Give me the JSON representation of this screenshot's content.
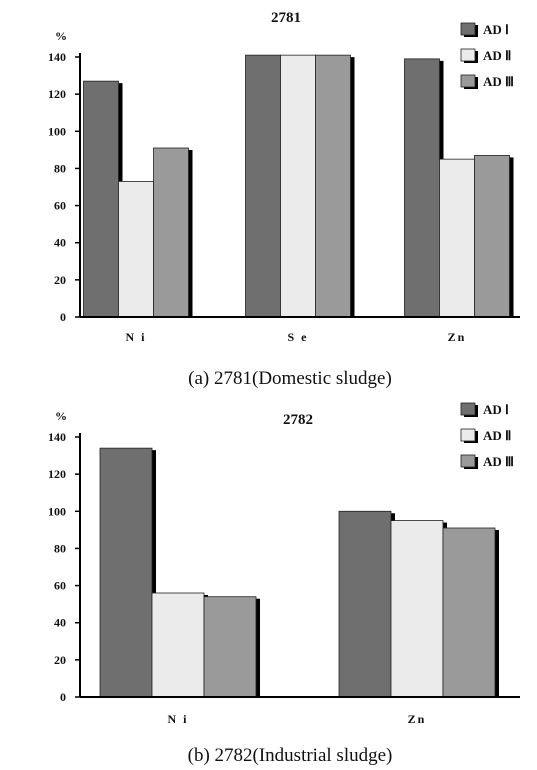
{
  "colors": {
    "AD I": "#6f6f6f",
    "AD II": "#ebebeb",
    "AD III": "#9a9a9a",
    "shadow": "#000000"
  },
  "chart_data": [
    {
      "type": "bar",
      "title": "2781",
      "ylabel": "%",
      "caption": "(a)  2781(Domestic  sludge)",
      "categories": [
        "N i",
        "S e",
        "Zn"
      ],
      "series": [
        {
          "name": "AD  Ⅰ",
          "values": [
            127,
            141,
            139
          ]
        },
        {
          "name": "AD  Ⅱ",
          "values": [
            73,
            141,
            85
          ]
        },
        {
          "name": "AD  Ⅲ",
          "values": [
            91,
            141,
            87
          ]
        }
      ],
      "ylim": [
        0,
        140
      ],
      "yticks": [
        0,
        20,
        40,
        60,
        80,
        100,
        120,
        140
      ],
      "legend": "top-right",
      "grid": false
    },
    {
      "type": "bar",
      "title": "2782",
      "ylabel": "%",
      "caption": "(b)  2782(Industrial  sludge)",
      "categories": [
        "N i",
        "Zn"
      ],
      "series": [
        {
          "name": "AD  Ⅰ",
          "values": [
            134,
            100
          ]
        },
        {
          "name": "AD  Ⅱ",
          "values": [
            56,
            95
          ]
        },
        {
          "name": "AD  Ⅲ",
          "values": [
            54,
            91
          ]
        }
      ],
      "ylim": [
        0,
        140
      ],
      "yticks": [
        0,
        20,
        40,
        60,
        80,
        100,
        120,
        140
      ],
      "legend": "top-right",
      "grid": false
    }
  ]
}
